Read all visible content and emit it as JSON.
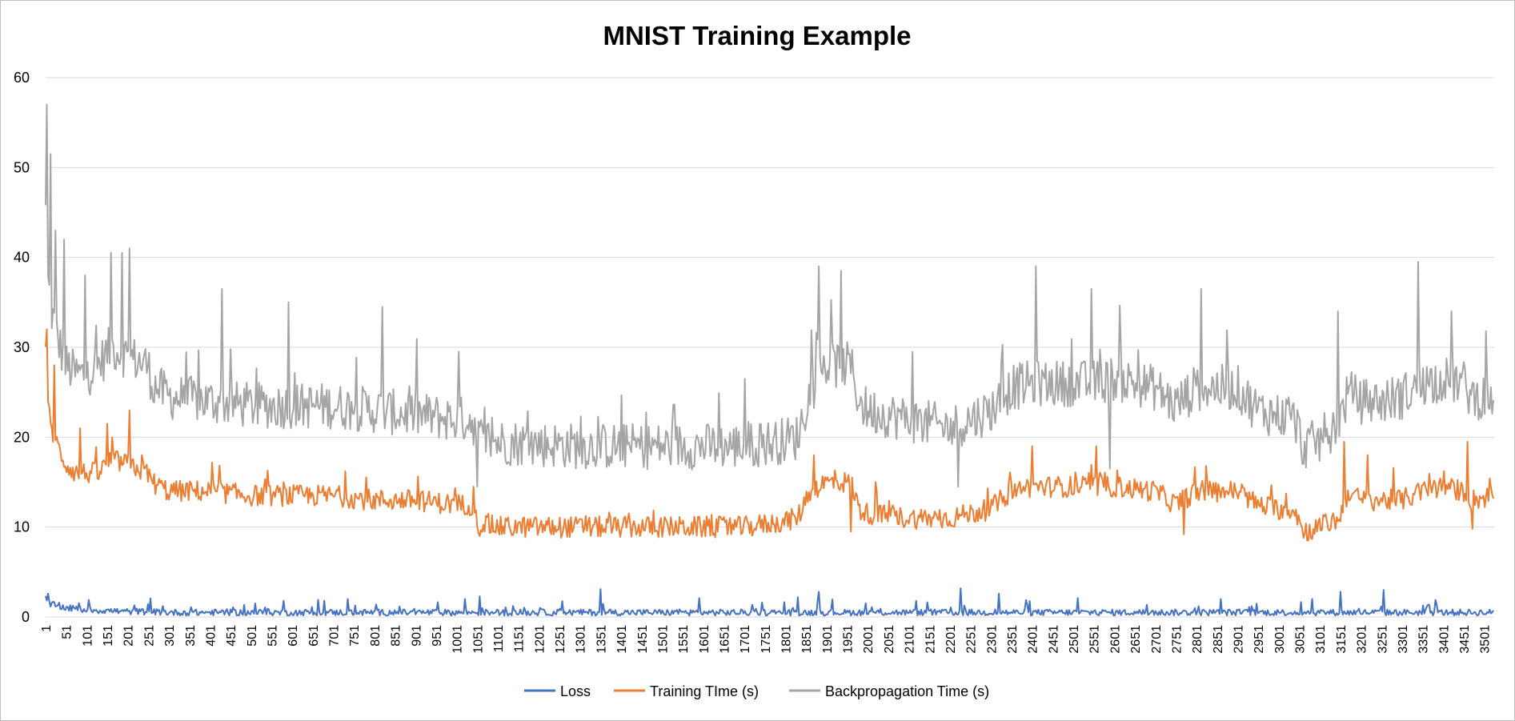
{
  "chart_data": {
    "type": "line",
    "title": "MNIST Training Example",
    "xlabel": "",
    "ylabel": "",
    "ylim": [
      0,
      60
    ],
    "y_ticks": [
      0,
      10,
      20,
      30,
      40,
      50,
      60
    ],
    "x_range": [
      1,
      3525
    ],
    "x_tick_labels": [
      "1",
      "51",
      "101",
      "151",
      "201",
      "251",
      "301",
      "351",
      "401",
      "451",
      "501",
      "551",
      "601",
      "651",
      "701",
      "751",
      "801",
      "851",
      "901",
      "951",
      "1001",
      "1051",
      "1101",
      "1151",
      "1201",
      "1251",
      "1301",
      "1351",
      "1401",
      "1451",
      "1501",
      "1551",
      "1601",
      "1651",
      "1701",
      "1751",
      "1801",
      "1851",
      "1901",
      "1951",
      "2001",
      "2051",
      "2101",
      "2151",
      "2201",
      "2251",
      "2301",
      "2351",
      "2401",
      "2451",
      "2501",
      "2551",
      "2601",
      "2651",
      "2701",
      "2751",
      "2801",
      "2851",
      "2901",
      "2951",
      "3001",
      "3051",
      "3101",
      "3151",
      "3201",
      "3251",
      "3301",
      "3351",
      "3401",
      "3451",
      "3501"
    ],
    "grid": true,
    "legend_position": "bottom",
    "series": [
      {
        "name": "Loss",
        "color": "#4472C4",
        "x": [
          1,
          5,
          50,
          100,
          150,
          200,
          250,
          300,
          400,
          600,
          800,
          1000,
          1200,
          1400,
          1600,
          1800,
          2000,
          2200,
          2400,
          2600,
          2800,
          3000,
          3200,
          3400,
          3525
        ],
        "values": [
          2.2,
          1.5,
          1.0,
          0.8,
          0.7,
          0.6,
          0.6,
          0.5,
          0.5,
          0.5,
          0.5,
          0.5,
          0.5,
          0.5,
          0.5,
          0.5,
          0.5,
          0.5,
          0.5,
          0.5,
          0.5,
          0.5,
          0.5,
          0.5,
          0.5
        ],
        "spikes": [
          {
            "x": 5,
            "y": 2.6
          },
          {
            "x": 215,
            "y": 1.3
          },
          {
            "x": 580,
            "y": 1.8
          },
          {
            "x": 735,
            "y": 2.0
          },
          {
            "x": 1020,
            "y": 2.0
          },
          {
            "x": 1055,
            "y": 2.3
          },
          {
            "x": 1350,
            "y": 3.1
          },
          {
            "x": 1590,
            "y": 2.1
          },
          {
            "x": 1830,
            "y": 2.2
          },
          {
            "x": 1880,
            "y": 2.8
          },
          {
            "x": 2225,
            "y": 3.2
          },
          {
            "x": 2320,
            "y": 2.6
          },
          {
            "x": 2510,
            "y": 2.1
          },
          {
            "x": 2860,
            "y": 2.0
          },
          {
            "x": 3080,
            "y": 2.0
          },
          {
            "x": 3150,
            "y": 2.8
          },
          {
            "x": 3255,
            "y": 3.0
          },
          {
            "x": 3380,
            "y": 1.9
          }
        ]
      },
      {
        "name": "Training TIme (s)",
        "color": "#ED7D31",
        "x": [
          1,
          5,
          15,
          30,
          50,
          75,
          100,
          130,
          160,
          200,
          250,
          260,
          300,
          400,
          500,
          600,
          700,
          800,
          900,
          1000,
          1040,
          1050,
          1100,
          1300,
          1500,
          1700,
          1780,
          1830,
          1860,
          1900,
          1960,
          1980,
          2000,
          2100,
          2200,
          2300,
          2350,
          2400,
          2500,
          2550,
          2600,
          2700,
          2750,
          2800,
          2900,
          2950,
          3000,
          3040,
          3060,
          3100,
          3150,
          3170,
          3200,
          3250,
          3300,
          3350,
          3400,
          3450,
          3470,
          3525
        ],
        "values": [
          29,
          24,
          21,
          19,
          17,
          16,
          16,
          16,
          17.5,
          17,
          16,
          15,
          14,
          14,
          13.5,
          13.5,
          13.5,
          13,
          13,
          12.5,
          12.5,
          10.5,
          10,
          10,
          10,
          10,
          10.5,
          11,
          14,
          15,
          15,
          12,
          11.5,
          11,
          11,
          12,
          14,
          14.5,
          14.5,
          14.5,
          14.5,
          14,
          12.5,
          14,
          14,
          12.5,
          12,
          12,
          9.5,
          10,
          11,
          14,
          13,
          13,
          13,
          14,
          14.5,
          14,
          13,
          13.5
        ],
        "spikes": [
          {
            "x": 3,
            "y": 32
          },
          {
            "x": 20,
            "y": 28
          },
          {
            "x": 85,
            "y": 21
          },
          {
            "x": 150,
            "y": 21.5
          },
          {
            "x": 205,
            "y": 23
          },
          {
            "x": 235,
            "y": 18
          },
          {
            "x": 1040,
            "y": 14.5
          },
          {
            "x": 1055,
            "y": 9
          },
          {
            "x": 1870,
            "y": 18
          },
          {
            "x": 1960,
            "y": 9.5
          },
          {
            "x": 2020,
            "y": 15
          },
          {
            "x": 2400,
            "y": 19
          },
          {
            "x": 2555,
            "y": 19
          },
          {
            "x": 2770,
            "y": 9.2
          },
          {
            "x": 3070,
            "y": 8.5
          },
          {
            "x": 3160,
            "y": 19.5
          },
          {
            "x": 3215,
            "y": 18
          },
          {
            "x": 3460,
            "y": 19.5
          },
          {
            "x": 3470,
            "y": 9.8
          }
        ]
      },
      {
        "name": "Backpropagation Time (s)",
        "color": "#A5A5A5",
        "x": [
          1,
          5,
          15,
          30,
          50,
          75,
          100,
          130,
          160,
          200,
          250,
          260,
          300,
          400,
          500,
          600,
          700,
          800,
          900,
          1000,
          1040,
          1050,
          1100,
          1300,
          1500,
          1700,
          1780,
          1830,
          1860,
          1900,
          1960,
          1980,
          2000,
          2100,
          2200,
          2300,
          2350,
          2400,
          2500,
          2550,
          2600,
          2700,
          2750,
          2800,
          2900,
          2950,
          3000,
          3040,
          3060,
          3100,
          3150,
          3170,
          3200,
          3250,
          3300,
          3350,
          3400,
          3450,
          3470,
          3525
        ],
        "values": [
          45,
          38,
          34,
          31,
          28,
          27,
          27,
          28,
          30,
          29,
          28,
          26,
          24.5,
          24,
          23.5,
          23.5,
          23.5,
          23,
          22.5,
          22,
          22,
          20,
          19.5,
          19,
          19,
          19,
          19.5,
          20,
          25,
          28,
          28,
          24,
          23,
          22,
          21,
          23,
          25.5,
          26,
          26,
          26,
          26.5,
          25.5,
          23.5,
          25.5,
          25.5,
          23,
          22.5,
          22,
          19,
          19.5,
          22,
          25,
          24,
          24,
          24.5,
          26,
          26.5,
          26,
          24.5,
          24.5
        ],
        "spikes": [
          {
            "x": 3,
            "y": 57
          },
          {
            "x": 12,
            "y": 51.5
          },
          {
            "x": 25,
            "y": 43
          },
          {
            "x": 45,
            "y": 42
          },
          {
            "x": 95,
            "y": 38
          },
          {
            "x": 160,
            "y": 40.5
          },
          {
            "x": 185,
            "y": 40.5
          },
          {
            "x": 205,
            "y": 41
          },
          {
            "x": 430,
            "y": 36.5
          },
          {
            "x": 590,
            "y": 35
          },
          {
            "x": 820,
            "y": 34.5
          },
          {
            "x": 1005,
            "y": 29.5
          },
          {
            "x": 1050,
            "y": 14.5
          },
          {
            "x": 1700,
            "y": 26.5
          },
          {
            "x": 1880,
            "y": 39
          },
          {
            "x": 1935,
            "y": 38.5
          },
          {
            "x": 2110,
            "y": 29.5
          },
          {
            "x": 2220,
            "y": 14.5
          },
          {
            "x": 2410,
            "y": 39
          },
          {
            "x": 2545,
            "y": 36.5
          },
          {
            "x": 2590,
            "y": 16.5
          },
          {
            "x": 2810,
            "y": 36.5
          },
          {
            "x": 3060,
            "y": 17
          },
          {
            "x": 3145,
            "y": 34
          },
          {
            "x": 3340,
            "y": 39.5
          },
          {
            "x": 3420,
            "y": 34
          }
        ]
      }
    ]
  }
}
